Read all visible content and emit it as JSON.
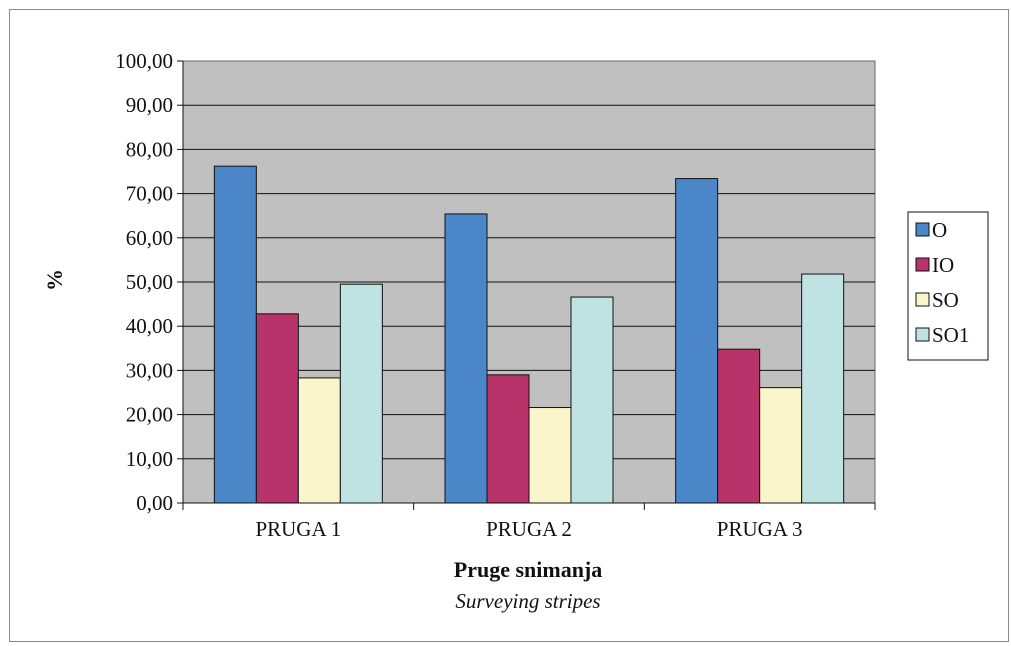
{
  "chart_data": {
    "type": "bar",
    "categories": [
      "PRUGA 1",
      "PRUGA 2",
      "PRUGA 3"
    ],
    "series": [
      {
        "name": "O",
        "color": "#4a86c8",
        "values": [
          76.2,
          65.4,
          73.4
        ]
      },
      {
        "name": "IO",
        "color": "#b8336a",
        "values": [
          42.8,
          29.0,
          34.8
        ]
      },
      {
        "name": "SO",
        "color": "#fbf5cc",
        "values": [
          28.3,
          21.6,
          26.1
        ]
      },
      {
        "name": "SO1",
        "color": "#bfe2e2",
        "values": [
          49.5,
          46.6,
          51.8
        ]
      }
    ],
    "ylim": [
      0,
      100
    ],
    "yticks": [
      "0,00",
      "10,00",
      "20,00",
      "30,00",
      "40,00",
      "50,00",
      "60,00",
      "70,00",
      "80,00",
      "90,00",
      "100,00"
    ],
    "ylabel": "%",
    "xlabel": "Pruge snimanja",
    "xlabel_sub": "Surveying stripes",
    "grid": true,
    "legend": "right",
    "plot_background": "#c0c0c0"
  }
}
